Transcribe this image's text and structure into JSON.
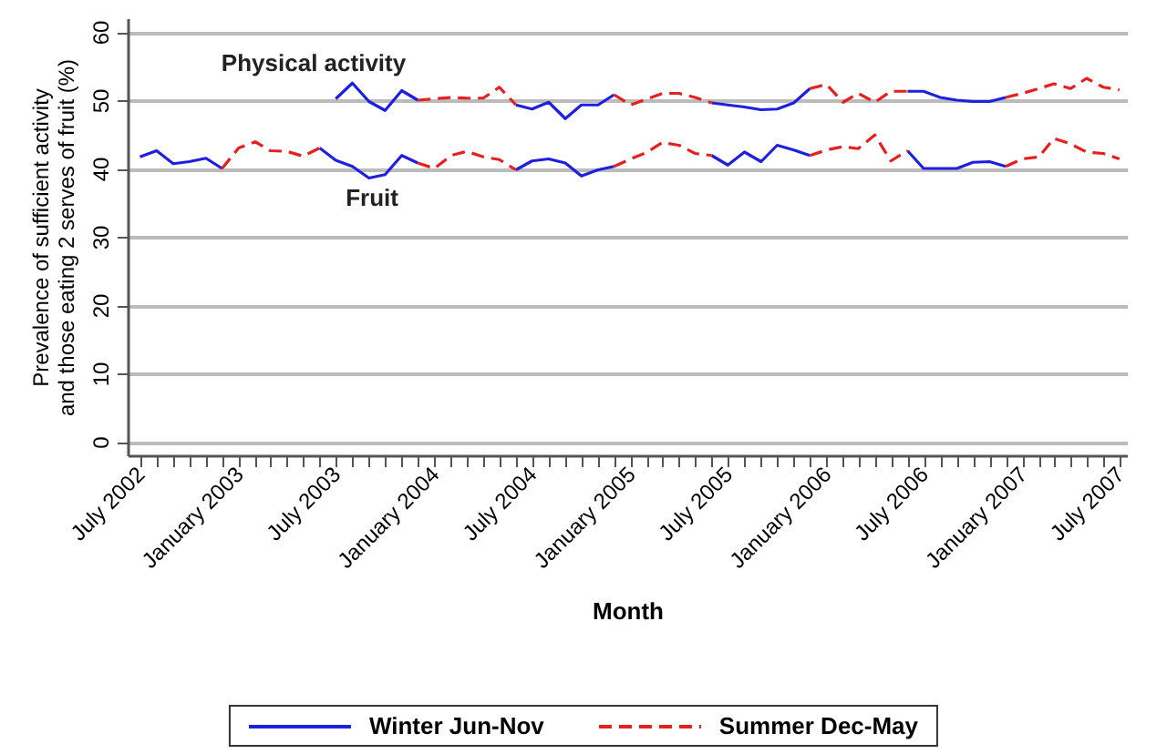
{
  "chart_data": {
    "type": "line",
    "xlabel": "Month",
    "ylabel": "Prevalence of sufficient activity\nand those eating 2 serves of fruit (%)",
    "x": [
      "2002-07",
      "2002-08",
      "2002-09",
      "2002-10",
      "2002-11",
      "2002-12",
      "2003-01",
      "2003-02",
      "2003-03",
      "2003-04",
      "2003-05",
      "2003-06",
      "2003-07",
      "2003-08",
      "2003-09",
      "2003-10",
      "2003-11",
      "2003-12",
      "2004-01",
      "2004-02",
      "2004-03",
      "2004-04",
      "2004-05",
      "2004-06",
      "2004-07",
      "2004-08",
      "2004-09",
      "2004-10",
      "2004-11",
      "2004-12",
      "2005-01",
      "2005-02",
      "2005-03",
      "2005-04",
      "2005-05",
      "2005-06",
      "2005-07",
      "2005-08",
      "2005-09",
      "2005-10",
      "2005-11",
      "2005-12",
      "2006-01",
      "2006-02",
      "2006-03",
      "2006-04",
      "2006-05",
      "2006-06",
      "2006-07",
      "2006-08",
      "2006-09",
      "2006-10",
      "2006-11",
      "2006-12",
      "2007-01",
      "2007-02",
      "2007-03",
      "2007-04",
      "2007-05",
      "2007-06",
      "2007-07"
    ],
    "series": [
      {
        "name": "Winter Jun-Nov",
        "color": "#1f1fe0",
        "line_style": "solid",
        "values": [
          41.7,
          42.6,
          40.7,
          41.0,
          41.5,
          40.0,
          null,
          null,
          null,
          null,
          null,
          43.0,
          41.2,
          40.3,
          38.6,
          39.1,
          41.9,
          40.8,
          null,
          null,
          null,
          null,
          null,
          39.8,
          41.1,
          41.4,
          40.8,
          38.9,
          39.8,
          40.3,
          null,
          null,
          null,
          null,
          null,
          41.9,
          40.5,
          42.4,
          41.0,
          43.4,
          42.7,
          41.9,
          null,
          null,
          null,
          null,
          null,
          42.6,
          40.0,
          40.0,
          40.0,
          40.9,
          41.0,
          40.3,
          null,
          null,
          null,
          null,
          null,
          null,
          null
        ]
      },
      {
        "name": "Summer Dec-May",
        "color": "#e81f1f",
        "line_style": "dashed",
        "values": [
          null,
          null,
          null,
          null,
          null,
          40.0,
          43.0,
          43.9,
          42.6,
          42.5,
          41.8,
          43.0,
          null,
          null,
          null,
          null,
          null,
          40.8,
          40.0,
          41.9,
          42.5,
          41.7,
          41.3,
          39.8,
          null,
          null,
          null,
          null,
          null,
          40.3,
          41.4,
          42.4,
          43.8,
          43.4,
          42.2,
          41.9,
          null,
          null,
          null,
          null,
          null,
          41.9,
          42.7,
          43.2,
          42.9,
          44.9,
          41.1,
          42.6,
          null,
          null,
          null,
          null,
          null,
          40.3,
          41.4,
          41.7,
          44.4,
          43.6,
          42.4,
          42.2,
          41.4
        ]
      },
      {
        "color": "#1f1fe0",
        "line_style": "solid",
        "values": [
          null,
          null,
          null,
          null,
          null,
          null,
          null,
          null,
          null,
          null,
          null,
          null,
          50.2,
          52.5,
          49.8,
          48.5,
          51.4,
          50.0,
          null,
          null,
          null,
          null,
          null,
          49.3,
          48.7,
          49.7,
          47.3,
          49.3,
          49.3,
          50.8,
          null,
          null,
          null,
          null,
          null,
          49.6,
          49.3,
          49.0,
          48.6,
          48.7,
          49.6,
          51.7,
          null,
          null,
          null,
          null,
          null,
          51.3,
          51.3,
          50.4,
          50.0,
          49.8,
          49.8,
          50.4,
          null,
          null,
          null,
          null,
          null,
          null,
          null
        ]
      },
      {
        "color": "#e81f1f",
        "line_style": "dashed",
        "values": [
          null,
          null,
          null,
          null,
          null,
          null,
          null,
          null,
          null,
          null,
          null,
          null,
          null,
          null,
          null,
          null,
          null,
          50.0,
          50.2,
          50.4,
          50.3,
          50.3,
          51.9,
          49.3,
          null,
          null,
          null,
          null,
          null,
          50.8,
          49.3,
          50.2,
          51.0,
          51.0,
          50.4,
          49.6,
          null,
          null,
          null,
          null,
          null,
          51.7,
          52.3,
          49.7,
          51.0,
          49.7,
          51.3,
          51.3,
          null,
          null,
          null,
          null,
          null,
          50.4,
          51.0,
          51.7,
          52.4,
          51.7,
          53.2,
          51.9,
          51.5
        ]
      }
    ],
    "annotations": [
      "Physical activity",
      "Fruit"
    ],
    "xlim": [
      "2002-06-08",
      "2007-07-15"
    ],
    "xticks": [
      {
        "value": "2002-07",
        "label": "July 2002"
      },
      {
        "value": "2002-08",
        "label": null
      },
      {
        "value": "2002-09",
        "label": null
      },
      {
        "value": "2002-10",
        "label": null
      },
      {
        "value": "2002-11",
        "label": null
      },
      {
        "value": "2002-12",
        "label": null
      },
      {
        "value": "2003-01",
        "label": "January 2003"
      },
      {
        "value": "2003-02",
        "label": null
      },
      {
        "value": "2003-03",
        "label": null
      },
      {
        "value": "2003-04",
        "label": null
      },
      {
        "value": "2003-05",
        "label": null
      },
      {
        "value": "2003-06",
        "label": null
      },
      {
        "value": "2003-07",
        "label": "July 2003"
      },
      {
        "value": "2003-08",
        "label": null
      },
      {
        "value": "2003-09",
        "label": null
      },
      {
        "value": "2003-10",
        "label": null
      },
      {
        "value": "2003-11",
        "label": null
      },
      {
        "value": "2003-12",
        "label": null
      },
      {
        "value": "2004-01",
        "label": "January 2004"
      },
      {
        "value": "2004-02",
        "label": null
      },
      {
        "value": "2004-03",
        "label": null
      },
      {
        "value": "2004-04",
        "label": null
      },
      {
        "value": "2004-05",
        "label": null
      },
      {
        "value": "2004-06",
        "label": null
      },
      {
        "value": "2004-07",
        "label": "July 2004"
      },
      {
        "value": "2004-08",
        "label": null
      },
      {
        "value": "2004-09",
        "label": null
      },
      {
        "value": "2004-10",
        "label": null
      },
      {
        "value": "2004-11",
        "label": null
      },
      {
        "value": "2004-12",
        "label": null
      },
      {
        "value": "2005-01",
        "label": "January 2005"
      },
      {
        "value": "2005-02",
        "label": null
      },
      {
        "value": "2005-03",
        "label": null
      },
      {
        "value": "2005-04",
        "label": null
      },
      {
        "value": "2005-05",
        "label": null
      },
      {
        "value": "2005-06",
        "label": null
      },
      {
        "value": "2005-07",
        "label": "July 2005"
      },
      {
        "value": "2005-08",
        "label": null
      },
      {
        "value": "2005-09",
        "label": null
      },
      {
        "value": "2005-10",
        "label": null
      },
      {
        "value": "2005-11",
        "label": null
      },
      {
        "value": "2005-12",
        "label": null
      },
      {
        "value": "2006-01",
        "label": "January 2006"
      },
      {
        "value": "2006-02",
        "label": null
      },
      {
        "value": "2006-03",
        "label": null
      },
      {
        "value": "2006-04",
        "label": null
      },
      {
        "value": "2006-05",
        "label": null
      },
      {
        "value": "2006-06",
        "label": null
      },
      {
        "value": "2006-07",
        "label": "July 2006"
      },
      {
        "value": "2006-08",
        "label": null
      },
      {
        "value": "2006-09",
        "label": null
      },
      {
        "value": "2006-10",
        "label": null
      },
      {
        "value": "2006-11",
        "label": null
      },
      {
        "value": "2006-12",
        "label": null
      },
      {
        "value": "2007-01",
        "label": "January 2007"
      },
      {
        "value": "2007-02",
        "label": null
      },
      {
        "value": "2007-03",
        "label": null
      },
      {
        "value": "2007-04",
        "label": null
      },
      {
        "value": "2007-05",
        "label": null
      },
      {
        "value": "2007-06",
        "label": null
      },
      {
        "value": "2007-07",
        "label": "July 2007"
      }
    ],
    "ylim": [
      -2,
      62
    ],
    "yticks": [
      0,
      10,
      20,
      30,
      40,
      50,
      60
    ],
    "grid": "y",
    "legend": "bottom"
  }
}
